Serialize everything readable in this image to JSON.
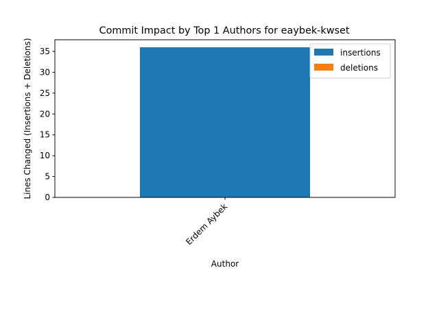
{
  "chart_data": {
    "type": "bar",
    "title": "Commit Impact by Top 1 Authors for eaybek-kwset",
    "xlabel": "Author",
    "ylabel": "Lines Changed (Insertions + Deletions)",
    "categories": [
      "Erdem Aybek"
    ],
    "series": [
      {
        "name": "insertions",
        "values": [
          36
        ],
        "color": "#1f77b4"
      },
      {
        "name": "deletions",
        "values": [
          0
        ],
        "color": "#ff7f0e"
      }
    ],
    "stacked": true,
    "ylim": [
      0,
      37.8
    ],
    "yticks": [
      0,
      5,
      10,
      15,
      20,
      25,
      30,
      35
    ],
    "grid": false,
    "legend_position": "top-right"
  }
}
